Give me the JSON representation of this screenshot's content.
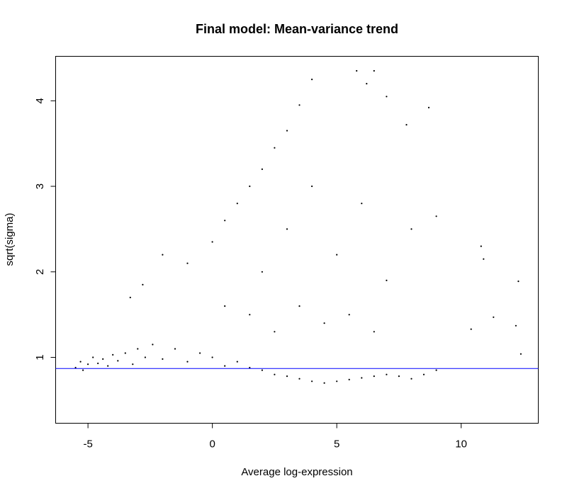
{
  "chart_data": {
    "type": "scatter",
    "title": "Final model: Mean-variance trend",
    "xlabel": "Average log-expression",
    "ylabel": "sqrt(sigma)",
    "xlim": [
      -6.3,
      13.1
    ],
    "ylim": [
      0.23,
      4.52
    ],
    "x_ticks": [
      -5,
      0,
      5,
      10
    ],
    "x_tick_labels": [
      "-5",
      "0",
      "5",
      "10"
    ],
    "y_ticks": [
      1,
      2,
      3,
      4
    ],
    "y_tick_labels": [
      "1",
      "2",
      "3",
      "4"
    ],
    "grid": false,
    "point_color": "#000000",
    "trend_line": {
      "type": "horizontal",
      "y": 0.87,
      "color": "#0000ff"
    },
    "series": [
      {
        "values": [
          [
            -5.5,
            0.88
          ],
          [
            -5.3,
            0.95
          ],
          [
            -5.2,
            0.85
          ],
          [
            -5.0,
            0.92
          ],
          [
            -4.8,
            1.0
          ],
          [
            -4.6,
            0.93
          ],
          [
            -4.4,
            0.98
          ],
          [
            -4.2,
            0.9
          ],
          [
            -4.0,
            1.03
          ],
          [
            -3.8,
            0.96
          ],
          [
            -3.5,
            1.05
          ],
          [
            -3.2,
            0.92
          ],
          [
            -3.0,
            1.1
          ],
          [
            -2.7,
            1.0
          ],
          [
            -2.4,
            1.15
          ],
          [
            -2.0,
            0.98
          ],
          [
            -1.5,
            1.1
          ],
          [
            -1.0,
            0.95
          ],
          [
            -0.5,
            1.05
          ],
          [
            0.0,
            1.0
          ],
          [
            0.5,
            0.9
          ],
          [
            1.0,
            0.95
          ],
          [
            1.5,
            0.88
          ],
          [
            2.0,
            0.85
          ],
          [
            2.5,
            0.8
          ],
          [
            3.0,
            0.78
          ],
          [
            3.5,
            0.75
          ],
          [
            4.0,
            0.72
          ],
          [
            4.5,
            0.7
          ],
          [
            5.0,
            0.72
          ],
          [
            5.5,
            0.74
          ],
          [
            6.0,
            0.76
          ],
          [
            6.5,
            0.78
          ],
          [
            7.0,
            0.8
          ],
          [
            7.5,
            0.78
          ],
          [
            8.0,
            0.75
          ],
          [
            8.5,
            0.8
          ],
          [
            9.0,
            0.85
          ],
          [
            -3.3,
            1.7
          ],
          [
            -2.8,
            1.85
          ],
          [
            -2.0,
            2.2
          ],
          [
            -1.0,
            2.1
          ],
          [
            0.0,
            2.35
          ],
          [
            0.5,
            2.6
          ],
          [
            1.0,
            2.8
          ],
          [
            1.5,
            3.0
          ],
          [
            2.0,
            3.2
          ],
          [
            2.5,
            3.45
          ],
          [
            3.0,
            3.65
          ],
          [
            3.5,
            3.95
          ],
          [
            4.0,
            4.25
          ],
          [
            5.8,
            4.35
          ],
          [
            6.5,
            4.35
          ],
          [
            6.2,
            4.2
          ],
          [
            7.0,
            4.05
          ],
          [
            8.7,
            3.92
          ],
          [
            7.8,
            3.72
          ],
          [
            9.0,
            2.65
          ],
          [
            10.8,
            2.3
          ],
          [
            10.9,
            2.15
          ],
          [
            12.2,
            1.37
          ],
          [
            12.3,
            1.89
          ],
          [
            12.4,
            1.04
          ],
          [
            11.3,
            1.47
          ],
          [
            10.4,
            1.33
          ],
          [
            2.0,
            2.0
          ],
          [
            3.0,
            2.5
          ],
          [
            4.0,
            3.0
          ],
          [
            5.0,
            2.2
          ],
          [
            6.0,
            2.8
          ],
          [
            7.0,
            1.9
          ],
          [
            8.0,
            2.5
          ],
          [
            3.5,
            1.6
          ],
          [
            4.5,
            1.4
          ],
          [
            5.5,
            1.5
          ],
          [
            6.5,
            1.3
          ],
          [
            2.5,
            1.3
          ],
          [
            1.5,
            1.5
          ],
          [
            0.5,
            1.6
          ]
        ]
      }
    ]
  }
}
